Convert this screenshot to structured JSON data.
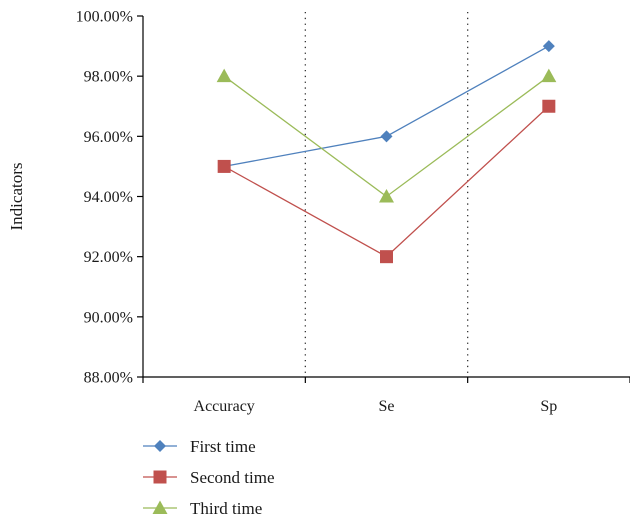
{
  "chart_data": {
    "type": "line",
    "title": "",
    "xlabel": "",
    "ylabel": "Indicators",
    "categories": [
      "Accuracy",
      "Se",
      "Sp"
    ],
    "ylim": [
      88,
      100
    ],
    "yticks": [
      88,
      90,
      92,
      94,
      96,
      98,
      100
    ],
    "ytick_labels": [
      "88.00%",
      "90.00%",
      "92.00%",
      "94.00%",
      "96.00%",
      "98.00%",
      "100.00%"
    ],
    "grid": false,
    "category_separators": "dotted vertical lines between categories",
    "legend_position": "bottom-left",
    "series": [
      {
        "name": "First time",
        "values": [
          95,
          96,
          99
        ],
        "color": "#4f81bd",
        "marker": "diamond"
      },
      {
        "name": "Second time",
        "values": [
          95,
          92,
          97
        ],
        "color": "#c0504d",
        "marker": "square"
      },
      {
        "name": "Third time",
        "values": [
          98,
          94,
          98
        ],
        "color": "#9bbb59",
        "marker": "triangle"
      }
    ]
  }
}
